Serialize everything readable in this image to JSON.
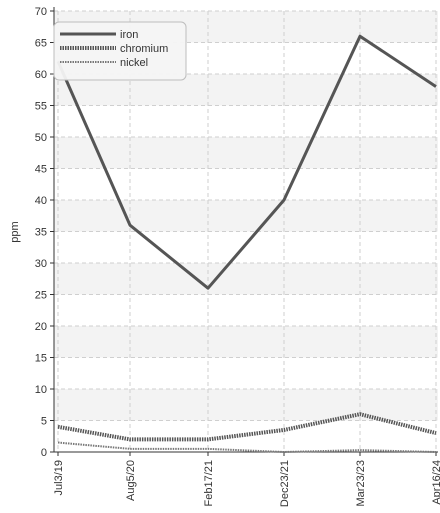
{
  "chart_data": {
    "type": "line",
    "title": "",
    "xlabel": "",
    "ylabel": "ppm",
    "ylim": [
      0,
      70
    ],
    "y_ticks": [
      0,
      5,
      10,
      15,
      20,
      25,
      30,
      35,
      40,
      45,
      50,
      55,
      60,
      65,
      70
    ],
    "categories": [
      "Jul3/19",
      "Aug5/20",
      "Feb17/21",
      "Dec23/21",
      "Mar23/23",
      "Apr16/24"
    ],
    "grid": true,
    "legend_position": "top-left",
    "series": [
      {
        "name": "iron",
        "values": [
          62,
          36,
          26,
          40,
          66,
          58
        ],
        "color": "#555555",
        "style": "solid"
      },
      {
        "name": "chromium",
        "values": [
          4,
          2,
          2,
          3.5,
          6,
          3
        ],
        "color": "#555555",
        "style": "dotted-thick"
      },
      {
        "name": "nickel",
        "values": [
          1.5,
          0.5,
          0.5,
          0,
          0.3,
          0
        ],
        "color": "#777777",
        "style": "dotted-thin"
      }
    ]
  }
}
